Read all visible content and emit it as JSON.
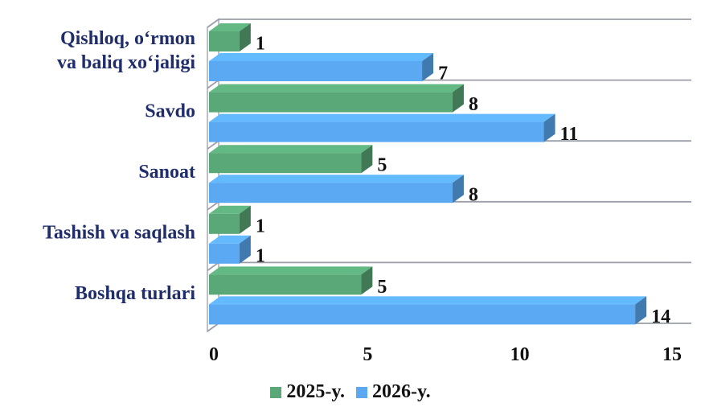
{
  "chart_data": {
    "type": "bar",
    "orientation": "horizontal",
    "title": "",
    "xlabel": "",
    "ylabel": "",
    "categories": [
      [
        "Qishloq, o‘rmon",
        "va baliq xo‘jaligi"
      ],
      [
        "Savdo"
      ],
      [
        "Sanoat"
      ],
      [
        "Tashish va saqlash"
      ],
      [
        "Boshqa turlari"
      ]
    ],
    "series": [
      {
        "name": "2025-y.",
        "values": [
          1,
          8,
          5,
          1,
          5
        ],
        "color": "#5aa878"
      },
      {
        "name": "2026-y.",
        "values": [
          7,
          11,
          8,
          1,
          14
        ],
        "color": "#5aa9f2"
      }
    ],
    "xlim": [
      0,
      15
    ],
    "xticks": [
      "0",
      "5",
      "10",
      "15"
    ],
    "grid": "horizontal separators",
    "legend_position": "bottom",
    "style": "3D horizontal bars"
  }
}
